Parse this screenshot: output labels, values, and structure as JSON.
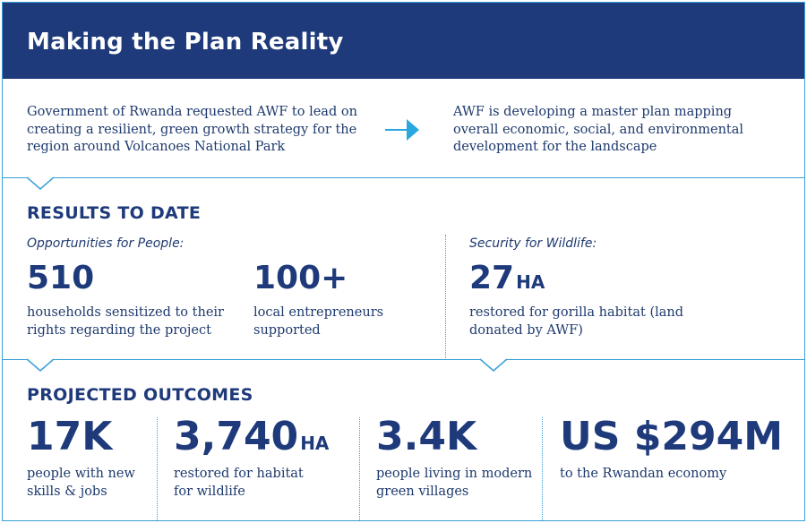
{
  "title": "Making the Plan Reality",
  "intro": {
    "left_text": "Government of Rwanda requested AWF to lead on creating a resilient, green growth strategy for the region around Volcanoes National Park",
    "arrow_icon": "arrow-right-icon",
    "right_text": "AWF is developing a master plan mapping overall economic, social, and environmental development for the landscape"
  },
  "results": {
    "heading": "RESULTS TO DATE",
    "people_label": "Opportunities for People:",
    "wildlife_label": "Security for Wildlife:",
    "stats": [
      {
        "value": "510",
        "unit": "",
        "caption": "households sensitized to their rights regarding the project"
      },
      {
        "value": "100+",
        "unit": "",
        "caption": "local entrepreneurs supported"
      },
      {
        "value": "27",
        "unit": "HA",
        "caption": "restored for gorilla habitat (land donated by AWF)"
      }
    ]
  },
  "projected": {
    "heading": "PROJECTED OUTCOMES",
    "stats": [
      {
        "value": "17K",
        "unit": "",
        "caption": "people with new skills & jobs"
      },
      {
        "value": "3,740",
        "unit": "HA",
        "caption": "restored for habitat for wildlife"
      },
      {
        "value": "3.4K",
        "unit": "",
        "caption": "people living in modern green villages"
      },
      {
        "value": "US $294M",
        "unit": "",
        "caption": "to the Rwandan economy"
      }
    ]
  },
  "colors": {
    "navy": "#1e3a7a",
    "accent_blue": "#3a9fd8",
    "arrow": "#29a8e0"
  }
}
